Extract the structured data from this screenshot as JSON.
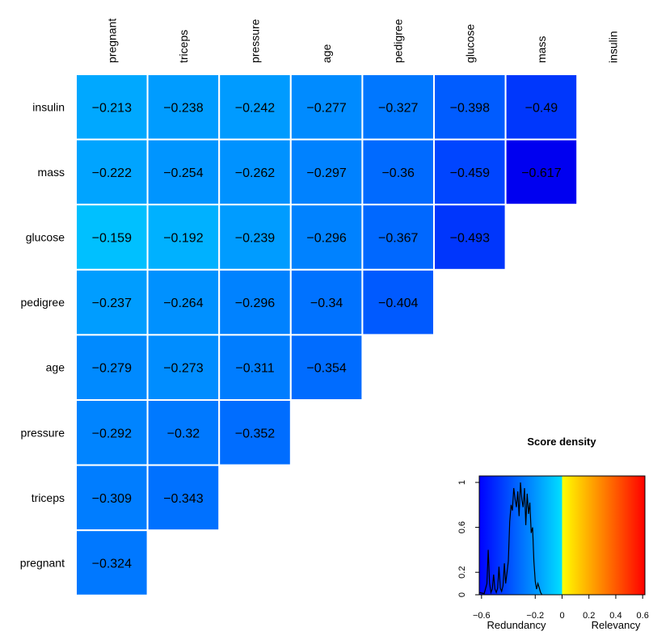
{
  "chart_data": {
    "type": "heatmap",
    "rows": [
      "insulin",
      "mass",
      "glucose",
      "pedigree",
      "age",
      "pressure",
      "triceps",
      "pregnant"
    ],
    "columns": [
      "pregnant",
      "triceps",
      "pressure",
      "age",
      "pedigree",
      "glucose",
      "mass",
      "insulin"
    ],
    "values": [
      [
        -0.213,
        -0.238,
        -0.242,
        -0.277,
        -0.327,
        -0.398,
        -0.49,
        null
      ],
      [
        -0.222,
        -0.254,
        -0.262,
        -0.297,
        -0.36,
        -0.459,
        -0.617,
        null
      ],
      [
        -0.159,
        -0.192,
        -0.239,
        -0.296,
        -0.367,
        -0.493,
        null,
        null
      ],
      [
        -0.237,
        -0.264,
        -0.296,
        -0.34,
        -0.404,
        null,
        null,
        null
      ],
      [
        -0.279,
        -0.273,
        -0.311,
        -0.354,
        null,
        null,
        null,
        null
      ],
      [
        -0.292,
        -0.32,
        -0.352,
        null,
        null,
        null,
        null,
        null
      ],
      [
        -0.309,
        -0.343,
        null,
        null,
        null,
        null,
        null,
        null
      ],
      [
        -0.324,
        null,
        null,
        null,
        null,
        null,
        null,
        null
      ]
    ],
    "color_scale": {
      "range": [
        -0.617,
        0.617
      ],
      "colors": [
        "#0000ff",
        "#00c8ff",
        "#ffff00",
        "#ff0000"
      ]
    },
    "legend": {
      "title": "Score density",
      "x_label_left": "Redundancy",
      "x_label_right": "Relevancy",
      "x_ticks": [
        "−0.6",
        "−0.2",
        "0",
        "0.2",
        "0.4",
        "0.6"
      ],
      "x_tick_values": [
        -0.6,
        -0.2,
        0,
        0.2,
        0.4,
        0.6
      ],
      "y_ticks": [
        "0",
        "0.2",
        "0.6",
        "1"
      ],
      "y_tick_values": [
        0,
        0.2,
        0.6,
        1
      ],
      "xlim": [
        -0.617,
        0.617
      ],
      "ylim": [
        0,
        1
      ],
      "density": {
        "x": [
          -0.617,
          -0.58,
          -0.56,
          -0.55,
          -0.54,
          -0.53,
          -0.52,
          -0.51,
          -0.5,
          -0.49,
          -0.48,
          -0.47,
          -0.46,
          -0.45,
          -0.44,
          -0.43,
          -0.42,
          -0.41,
          -0.4,
          -0.39,
          -0.38,
          -0.37,
          -0.36,
          -0.35,
          -0.34,
          -0.33,
          -0.32,
          -0.31,
          -0.3,
          -0.29,
          -0.28,
          -0.27,
          -0.26,
          -0.25,
          -0.24,
          -0.23,
          -0.22,
          -0.21,
          -0.2,
          -0.19,
          -0.18,
          -0.17,
          -0.16,
          -0.15
        ],
        "y": [
          0.02,
          0.01,
          0.1,
          0.4,
          0.1,
          0.02,
          0.05,
          0.18,
          0.05,
          0.02,
          0.06,
          0.25,
          0.06,
          0.03,
          0.08,
          0.28,
          0.1,
          0.2,
          0.3,
          0.65,
          0.8,
          0.75,
          0.95,
          0.85,
          0.78,
          0.92,
          0.7,
          1.0,
          0.85,
          0.78,
          0.95,
          0.62,
          0.9,
          0.72,
          0.82,
          0.55,
          0.6,
          0.3,
          0.12,
          0.05,
          0.1,
          0.06,
          0.02,
          0.0
        ]
      }
    }
  }
}
